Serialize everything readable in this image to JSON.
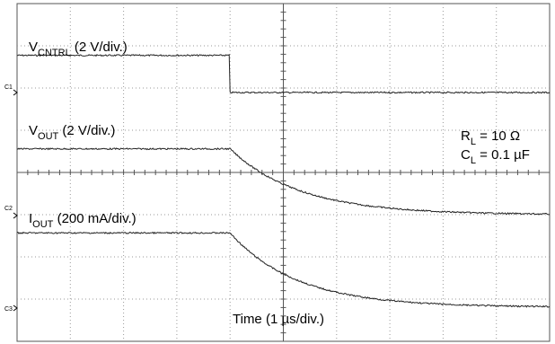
{
  "chart_data": {
    "type": "line",
    "title": "",
    "x_label": "Time (1 µs/div.)",
    "x_unit_per_div": "1 µs",
    "x_divisions": 10,
    "x_range_div": [
      0,
      10
    ],
    "grid": true,
    "trigger_time_div": 4.0,
    "channel_markers": [
      "C1",
      "C2",
      "C3"
    ],
    "series": [
      {
        "name_main": "V",
        "name_sub": "CNTRL",
        "name_scale": " (2 V/div.)",
        "marker": "C1",
        "color": "#222222",
        "high_level_div": 0.88,
        "low_level_div": 0.0,
        "high_until_div": 4.0,
        "shape": "step_down"
      },
      {
        "name_main": "V",
        "name_sub": "OUT",
        "name_scale": " (2 V/div.)",
        "marker": "C2",
        "color": "#222222",
        "initial_level_div": 1.58,
        "final_level_div": 0.02,
        "decay_start_div": 4.0,
        "tau_div": 1.3,
        "shape": "exp_decay"
      },
      {
        "name_main": "I",
        "name_sub": "OUT",
        "name_scale": " (200 mA/div.)",
        "marker": "C3",
        "color": "#222222",
        "initial_level_div": 1.78,
        "final_level_div": 0.02,
        "decay_start_div": 4.0,
        "tau_div": 1.25,
        "shape": "exp_decay"
      }
    ],
    "annotations": {
      "rl_main": "R",
      "rl_sub": "L",
      "rl_value": " = 10 Ω",
      "cl_main": "C",
      "cl_sub": "L",
      "cl_value": " = 0.1 µF"
    }
  }
}
